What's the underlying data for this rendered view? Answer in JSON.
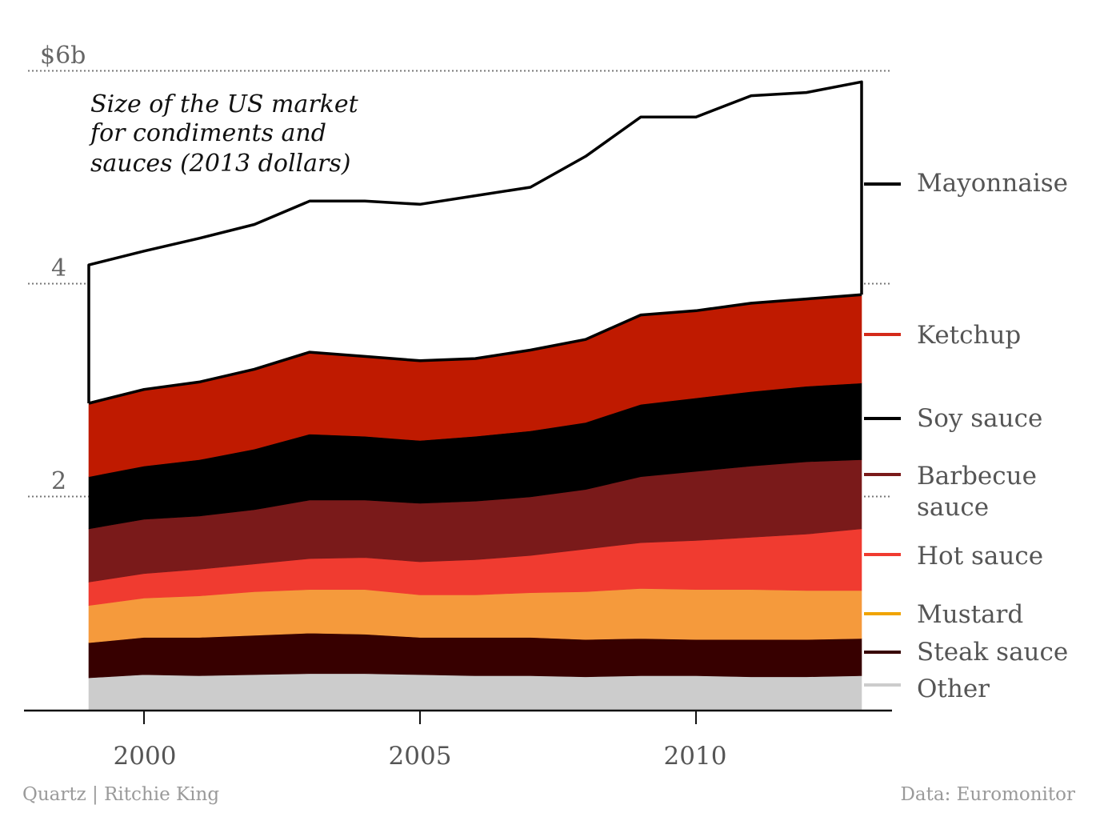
{
  "chart_data": {
    "type": "area",
    "stacked": true,
    "title_lines": [
      "Size of the US market",
      "for condiments and",
      "sauces (2013 dollars)"
    ],
    "x": [
      1999,
      2000,
      2001,
      2002,
      2003,
      2004,
      2005,
      2006,
      2007,
      2008,
      2009,
      2010,
      2011,
      2012,
      2013
    ],
    "xticks": [
      2000,
      2005,
      2010
    ],
    "xtick_labels": [
      "2000",
      "2005",
      "2010"
    ],
    "xlim": [
      1998,
      2013.5
    ],
    "ylim": [
      0,
      6
    ],
    "yticks": [
      2,
      4,
      6
    ],
    "ytick_labels": [
      "2",
      "4",
      "$6b"
    ],
    "grid": "dotted horizontal at 2, 4, 6",
    "legend": "right, labels aligned to series end",
    "series": [
      {
        "name": "Other",
        "color": "#cccccc",
        "values": [
          0.3,
          0.33,
          0.32,
          0.33,
          0.34,
          0.34,
          0.33,
          0.32,
          0.32,
          0.31,
          0.32,
          0.32,
          0.31,
          0.31,
          0.32
        ]
      },
      {
        "name": "Steak sauce",
        "color": "#370000",
        "values": [
          0.33,
          0.35,
          0.36,
          0.37,
          0.38,
          0.37,
          0.35,
          0.36,
          0.36,
          0.35,
          0.35,
          0.34,
          0.35,
          0.35,
          0.35
        ]
      },
      {
        "name": "Mustard",
        "color": "#f59a3c",
        "values": [
          0.35,
          0.37,
          0.39,
          0.41,
          0.41,
          0.42,
          0.4,
          0.4,
          0.42,
          0.45,
          0.47,
          0.47,
          0.47,
          0.46,
          0.45
        ]
      },
      {
        "name": "Hot sauce",
        "color": "#f03b30",
        "values": [
          0.22,
          0.23,
          0.25,
          0.26,
          0.29,
          0.3,
          0.31,
          0.33,
          0.35,
          0.4,
          0.43,
          0.46,
          0.49,
          0.53,
          0.58
        ]
      },
      {
        "name": "Barbecue sauce",
        "color": "#7a1a1a",
        "values": [
          0.5,
          0.51,
          0.5,
          0.51,
          0.55,
          0.54,
          0.55,
          0.55,
          0.55,
          0.56,
          0.62,
          0.65,
          0.67,
          0.68,
          0.65
        ]
      },
      {
        "name": "Soy sauce",
        "color": "#000000",
        "values": [
          0.49,
          0.5,
          0.53,
          0.57,
          0.62,
          0.6,
          0.59,
          0.61,
          0.62,
          0.63,
          0.68,
          0.69,
          0.7,
          0.71,
          0.72
        ]
      },
      {
        "name": "Ketchup",
        "color": "#bf1a00",
        "values": [
          0.69,
          0.72,
          0.73,
          0.75,
          0.77,
          0.75,
          0.75,
          0.73,
          0.76,
          0.78,
          0.84,
          0.82,
          0.83,
          0.82,
          0.83
        ]
      },
      {
        "name": "Mayonnaise",
        "color": "#ffffff",
        "values": [
          1.3,
          1.3,
          1.35,
          1.36,
          1.42,
          1.46,
          1.47,
          1.53,
          1.53,
          1.72,
          1.86,
          1.82,
          1.95,
          1.94,
          2.0
        ]
      }
    ]
  },
  "legend_labels": {
    "mayonnaise": "Mayonnaise",
    "ketchup": "Ketchup",
    "soy": "Soy sauce",
    "bbq_line1": "Barbecue",
    "bbq_line2": "sauce",
    "hot": "Hot sauce",
    "mustard": "Mustard",
    "steak": "Steak sauce",
    "other": "Other"
  },
  "legend_colors": {
    "mayonnaise": "#000000",
    "ketchup": "#d42a1a",
    "soy": "#000000",
    "bbq": "#7a1a1a",
    "hot": "#f03b30",
    "mustard": "#f0a400",
    "steak": "#370000",
    "other": "#cccccc"
  },
  "footer": {
    "credit": "Quartz | Ritchie King",
    "source": "Data: Euromonitor"
  }
}
